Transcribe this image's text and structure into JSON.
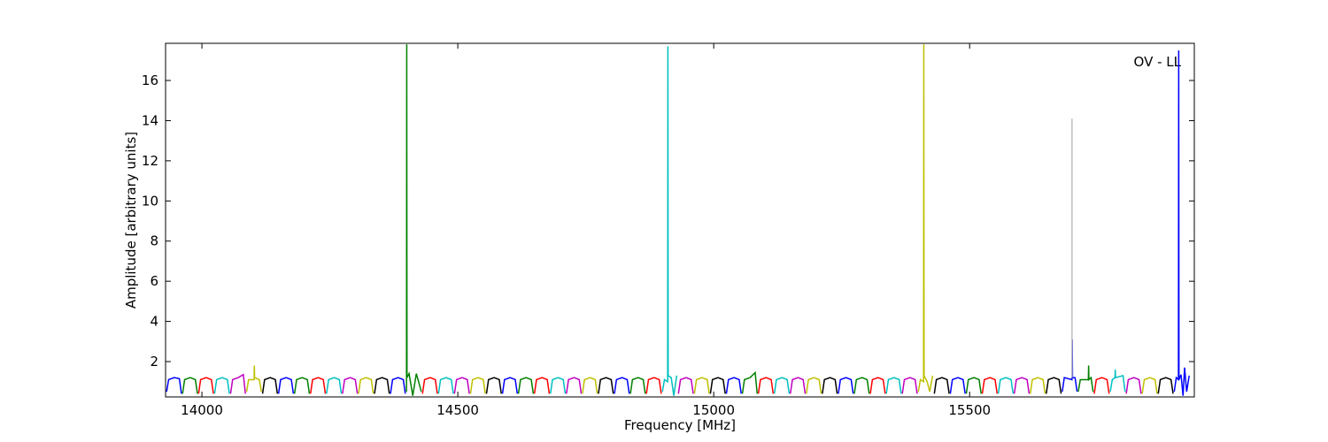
{
  "chart_data": {
    "type": "line",
    "xlabel": "Frequency [MHz]",
    "ylabel": "Amplitude [arbitrary units]",
    "annotation": "OV - LL",
    "xlim": [
      13929,
      15939
    ],
    "ylim": [
      0.24,
      17.85
    ],
    "xticks": [
      14000,
      14500,
      15000,
      15500
    ],
    "yticks": [
      2,
      4,
      6,
      8,
      10,
      12,
      14,
      16
    ],
    "grid": false,
    "series": [
      {
        "color": "#0000ff",
        "x": [
          13931,
          13935,
          13946,
          13956,
          13960,
          null,
          14149.75,
          14153.75,
          14164.75,
          14174.75,
          14178.75,
          null,
          14368.5,
          14372.5,
          14383.5,
          14393.5,
          14397.5,
          null,
          14587.25,
          14591.25,
          14602.25,
          14612.25,
          14616.25,
          null,
          14806,
          14810,
          14821,
          14831,
          14835,
          null,
          15024.75,
          15028.75,
          15039.75,
          15049.75,
          15053.75,
          null,
          15243.5,
          15247.5,
          15258.5,
          15268.5,
          15272.5,
          null,
          15462.25,
          15466.25,
          15477.25,
          15487.25,
          15491.25,
          null,
          15681,
          15685,
          15700,
          15700.5,
          15701,
          15706,
          15710,
          null,
          15899.75,
          15903.75,
          15908,
          15908.5,
          15909,
          15913,
          15917,
          15920,
          15924,
          15929
        ],
        "values": [
          0.5,
          1.1,
          1.2,
          1.15,
          0.4,
          null,
          0.4,
          1.1,
          1.2,
          1.1,
          0.4,
          null,
          0.4,
          1.1,
          1.2,
          1.1,
          0.4,
          null,
          0.4,
          1.1,
          1.2,
          1.1,
          0.4,
          null,
          0.4,
          1.1,
          1.2,
          1.1,
          0.4,
          null,
          0.4,
          1.1,
          1.2,
          1.1,
          0.4,
          null,
          0.4,
          1.1,
          1.2,
          1.1,
          0.4,
          null,
          0.4,
          1.1,
          1.2,
          1.1,
          0.4,
          null,
          0.5,
          1.2,
          1.1,
          3.1,
          1.2,
          1.2,
          0.5,
          null,
          0.5,
          1.2,
          1.1,
          17.5,
          1.1,
          1.35,
          0.3,
          1.7,
          0.5,
          1.3
        ]
      },
      {
        "color": "#008000",
        "x": [
          13962.25,
          13966.25,
          13977.25,
          13987.25,
          13991.25,
          null,
          14181,
          14185,
          14196,
          14206,
          14210,
          null,
          14399.75,
          14400.25,
          14400.75,
          14404.75,
          14412,
          14419,
          14428.75,
          null,
          14618.5,
          14622.5,
          14633.5,
          14643.5,
          14647.5,
          null,
          14837.25,
          14841.25,
          14852.25,
          14862.25,
          14866.25,
          null,
          15056,
          15060,
          15071,
          15081,
          15085,
          null,
          15274.75,
          15278.75,
          15289.75,
          15299.75,
          15303.75,
          null,
          15493.5,
          15497.5,
          15508.5,
          15518.5,
          15522.5,
          null,
          15712.25,
          15716.25,
          15732,
          15732.5,
          15733,
          15737.25,
          15741.25
        ],
        "values": [
          0.4,
          1.1,
          1.2,
          1.1,
          0.4,
          null,
          0.4,
          1.1,
          1.2,
          1.1,
          0.4,
          null,
          0.5,
          17.8,
          1.2,
          1.4,
          0.3,
          1.4,
          0.5,
          null,
          0.4,
          1.1,
          1.2,
          1.1,
          0.4,
          null,
          0.4,
          1.1,
          1.2,
          1.1,
          0.4,
          null,
          0.4,
          1.1,
          1.2,
          1.45,
          0.4,
          null,
          0.4,
          1.1,
          1.2,
          1.1,
          0.4,
          null,
          0.4,
          1.1,
          1.2,
          1.1,
          0.4,
          null,
          0.5,
          1.1,
          1.1,
          1.8,
          1.1,
          1.2,
          0.5
        ]
      },
      {
        "color": "#ff0000",
        "x": [
          13993.5,
          13997.5,
          14008.5,
          14018.5,
          14022.5,
          null,
          14212.25,
          14216.25,
          14227.25,
          14237.25,
          14241.25,
          null,
          14431,
          14435,
          14446,
          14456,
          14460,
          null,
          14649.75,
          14653.75,
          14664.75,
          14674.75,
          14678.75,
          null,
          14868.5,
          14872.5,
          14883.5,
          14893.5,
          14897.5,
          null,
          15087.25,
          15091.25,
          15102.25,
          15112.25,
          15116.25,
          null,
          15306,
          15310,
          15321,
          15331,
          15335,
          null,
          15524.75,
          15528.75,
          15539.75,
          15549.75,
          15553.75,
          null,
          15743.5,
          15747.5,
          15758.5,
          15768.5,
          15772.5
        ],
        "values": [
          0.4,
          1.1,
          1.2,
          1.1,
          0.4,
          null,
          0.4,
          1.1,
          1.2,
          1.1,
          0.4,
          null,
          0.4,
          1.1,
          1.2,
          1.1,
          0.4,
          null,
          0.4,
          1.1,
          1.2,
          1.1,
          0.4,
          null,
          0.4,
          1.1,
          1.2,
          1.1,
          0.4,
          null,
          0.4,
          1.1,
          1.2,
          1.1,
          0.4,
          null,
          0.4,
          1.1,
          1.2,
          1.1,
          0.4,
          null,
          0.4,
          1.1,
          1.2,
          1.1,
          0.4,
          null,
          0.4,
          1.1,
          1.2,
          1.1,
          0.4
        ]
      },
      {
        "color": "#00bfbf",
        "x": [
          14024.75,
          14028.75,
          14039.75,
          14049.75,
          14053.75,
          null,
          14243.5,
          14247.5,
          14258.5,
          14268.5,
          14272.5,
          null,
          14462.25,
          14466.25,
          14477.25,
          14487.25,
          14491.25,
          null,
          14681,
          14685,
          14696,
          14706,
          14710,
          null,
          14899.75,
          14903.75,
          14910,
          14910.5,
          14911,
          14917,
          14922,
          14927.75,
          null,
          15118.5,
          15122.5,
          15133.5,
          15143.5,
          15147.5,
          null,
          15337.25,
          15341.25,
          15352.25,
          15362.25,
          15366.25,
          null,
          15556,
          15560,
          15571,
          15581,
          15585,
          null,
          15774.75,
          15778.75,
          15784,
          15784.5,
          15785,
          15799.75,
          15803.75
        ],
        "values": [
          0.4,
          1.1,
          1.2,
          1.1,
          0.4,
          null,
          0.4,
          1.1,
          1.2,
          1.1,
          0.4,
          null,
          0.4,
          1.1,
          1.2,
          1.1,
          0.4,
          null,
          0.4,
          1.1,
          1.2,
          1.1,
          0.4,
          null,
          0.5,
          1.1,
          1.0,
          17.7,
          1.3,
          1.2,
          0.3,
          1.3,
          null,
          0.4,
          1.1,
          1.2,
          1.1,
          0.4,
          null,
          0.4,
          1.1,
          1.2,
          1.1,
          0.4,
          null,
          0.4,
          1.1,
          1.2,
          1.1,
          0.4,
          null,
          0.5,
          1.1,
          1.2,
          1.6,
          1.2,
          1.3,
          0.5
        ]
      },
      {
        "color": "#bf00bf",
        "x": [
          14056,
          14060,
          14071,
          14081,
          14085,
          null,
          14274.75,
          14278.75,
          14289.75,
          14299.75,
          14303.75,
          null,
          14493.5,
          14497.5,
          14508.5,
          14518.5,
          14522.5,
          null,
          14712.25,
          14716.25,
          14727.25,
          14737.25,
          14741.25,
          null,
          14931,
          14935,
          14946,
          14956,
          14960,
          null,
          15149.75,
          15153.75,
          15164.75,
          15174.75,
          15178.75,
          null,
          15368.5,
          15372.5,
          15383.5,
          15393.5,
          15397.5,
          null,
          15587.25,
          15591.25,
          15602.25,
          15612.25,
          15616.25,
          null,
          15806,
          15810,
          15821,
          15831,
          15835
        ],
        "values": [
          0.4,
          1.1,
          1.2,
          1.35,
          0.4,
          null,
          0.4,
          1.1,
          1.2,
          1.1,
          0.4,
          null,
          0.4,
          1.1,
          1.2,
          1.1,
          0.4,
          null,
          0.4,
          1.1,
          1.2,
          1.1,
          0.4,
          null,
          0.4,
          1.1,
          1.2,
          1.1,
          0.4,
          null,
          0.4,
          1.1,
          1.2,
          1.1,
          0.4,
          null,
          0.4,
          1.1,
          1.2,
          1.1,
          0.4,
          null,
          0.4,
          1.1,
          1.2,
          1.1,
          0.4,
          null,
          0.4,
          1.1,
          1.2,
          1.1,
          0.4
        ]
      },
      {
        "color": "#bfbf00",
        "x": [
          14087.25,
          14091.25,
          14102,
          14102.5,
          14103,
          14112.25,
          14116.25,
          null,
          14306,
          14310,
          14321,
          14331,
          14335,
          null,
          14524.75,
          14528.75,
          14539.75,
          14549.75,
          14553.75,
          null,
          14743.5,
          14747.5,
          14758.5,
          14768.5,
          14772.5,
          null,
          14962.25,
          14966.25,
          14977.25,
          14987.25,
          14991.25,
          null,
          15181,
          15185,
          15196,
          15206,
          15210,
          null,
          15399.75,
          15403.75,
          15410,
          15410.5,
          15411,
          15417,
          15422,
          15427.75,
          null,
          15618.5,
          15622.5,
          15633.5,
          15643.5,
          15647.5,
          null,
          15837.25,
          15841.25,
          15852.25,
          15862.25,
          15866.25
        ],
        "values": [
          0.5,
          1.1,
          1.1,
          1.8,
          1.2,
          1.1,
          0.5,
          null,
          0.4,
          1.1,
          1.2,
          1.1,
          0.4,
          null,
          0.4,
          1.1,
          1.2,
          1.1,
          0.4,
          null,
          0.4,
          1.1,
          1.2,
          1.1,
          0.4,
          null,
          0.4,
          1.1,
          1.2,
          1.1,
          0.4,
          null,
          0.4,
          1.1,
          1.2,
          1.1,
          0.4,
          null,
          0.5,
          1.1,
          1.0,
          17.8,
          1.3,
          1.0,
          0.5,
          1.3,
          null,
          0.4,
          1.1,
          1.2,
          1.1,
          0.4,
          null,
          0.4,
          1.1,
          1.2,
          1.1,
          0.4
        ]
      },
      {
        "color": "#000000",
        "x": [
          14118.5,
          14122.5,
          14133.5,
          14143.5,
          14147.5,
          null,
          14337.25,
          14341.25,
          14352.25,
          14362.25,
          14366.25,
          null,
          14556,
          14560,
          14571,
          14581,
          14585,
          null,
          14774.75,
          14778.75,
          14789.75,
          14799.75,
          14803.75,
          null,
          14993.5,
          14997.5,
          15008.5,
          15018.5,
          15022.5,
          null,
          15212.25,
          15216.25,
          15227.25,
          15237.25,
          15241.25,
          null,
          15431,
          15435,
          15446,
          15456,
          15460,
          null,
          15649.75,
          15653.75,
          15664.75,
          15674.75,
          15678.75,
          null,
          15868.5,
          15872.5,
          15883.5,
          15893.5,
          15897.5
        ],
        "values": [
          0.4,
          1.1,
          1.2,
          1.1,
          0.4,
          null,
          0.4,
          1.1,
          1.2,
          1.1,
          0.4,
          null,
          0.4,
          1.1,
          1.2,
          1.1,
          0.4,
          null,
          0.4,
          1.1,
          1.2,
          1.1,
          0.4,
          null,
          0.4,
          1.1,
          1.2,
          1.1,
          0.4,
          null,
          0.4,
          1.1,
          1.2,
          1.1,
          0.4,
          null,
          0.4,
          1.1,
          1.2,
          1.1,
          0.4,
          null,
          0.4,
          1.1,
          1.2,
          1.1,
          0.4,
          null,
          0.4,
          1.1,
          1.2,
          1.1,
          0.4
        ]
      },
      {
        "color": "#bfbfbf",
        "x": [
          15700,
          15700
        ],
        "values": [
          1.2,
          14.1
        ]
      }
    ]
  }
}
